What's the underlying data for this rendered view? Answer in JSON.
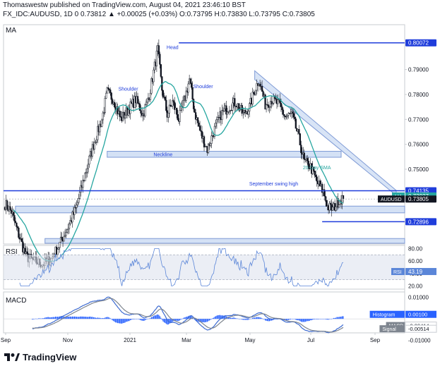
{
  "header": {
    "line1": "Thomaswestw published on TradingView.com, August 04, 2021 23:46:10 BST",
    "line2": "FX_IDC:AUDUSD, 1D  0 0.73812  ▲ +0.00025 (+0.03%)  O:0.73795  H:0.73830  L:0.73795  C:0.73805"
  },
  "panes": {
    "main": "MA",
    "rsi": "RSI",
    "macd": "MACD"
  },
  "footer": {
    "brand": "TradingView"
  },
  "chart_data": {
    "type": "candlestick",
    "symbol": "AUDUSD",
    "x_ticks": [
      "Sep",
      "Nov",
      "2021",
      "Mar",
      "May",
      "Jul",
      "Sep"
    ],
    "price_axis": {
      "ticks": [
        "0.79000",
        "0.78000",
        "0.77000",
        "0.76000",
        "0.75000"
      ],
      "range": [
        0.72,
        0.808
      ]
    },
    "price_labels": [
      {
        "value": 0.80072,
        "text": "0.80072",
        "style": "blue"
      },
      {
        "value": 0.74135,
        "text": "0.74135",
        "style": "blue"
      },
      {
        "value": 0.73927,
        "text": "0.73927",
        "style": "cyan",
        "tag": "MA"
      },
      {
        "value": 0.73805,
        "text": "0.73805",
        "style": "dark",
        "tag": "AUDUSD"
      },
      {
        "value": 0.72896,
        "text": "0.72896",
        "style": "blue"
      }
    ],
    "annotations": [
      "Head",
      "Shoulder",
      "Shoulder",
      "Neckline",
      "20-Day SMA",
      "September swing high"
    ],
    "levels": {
      "head": 0.80072,
      "september_swing_high": 0.74135,
      "july_low": 0.72896
    },
    "rsi": {
      "ticks": [
        "80.00",
        "60.00",
        "40.00",
        "20.00"
      ],
      "range": [
        15,
        85
      ],
      "last": 43.19,
      "label": "RSI",
      "last_text": "43.19"
    },
    "macd": {
      "ticks": [
        "0.01000",
        "-0.01000"
      ],
      "range": [
        -0.0065,
        0.0125
      ],
      "histogram_label": "Histogram",
      "histogram_text": "0.00100",
      "macd_label": "MACD",
      "macd_text": "-0.00414",
      "signal_label": "Signal",
      "signal_text": "-0.00514"
    }
  },
  "colors": {
    "up": "#131722",
    "down": "#131722",
    "sma": "#26a6a0",
    "level": "#1f3ddb",
    "zone": "#b8cdef",
    "rsi": "#5b86d8",
    "macd": "#3d6bd1",
    "signal": "#7e858f",
    "hist": "#2962ff"
  }
}
